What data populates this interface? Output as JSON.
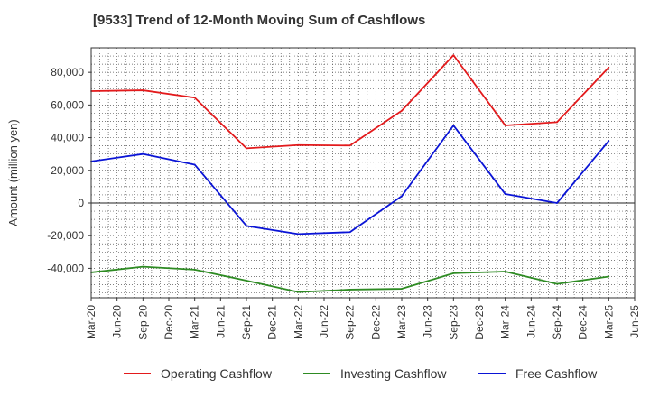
{
  "chart_data": {
    "type": "line",
    "title": "[9533]  Trend of 12-Month Moving Sum of Cashflows",
    "xlabel": "",
    "ylabel": "Amount (million yen)",
    "ylim": [
      -58000,
      95000
    ],
    "y_ticks": [
      -40000,
      -20000,
      0,
      20000,
      40000,
      60000,
      80000
    ],
    "y_tick_labels": [
      "-40,000",
      "-20,000",
      "0",
      "20,000",
      "40,000",
      "60,000",
      "80,000"
    ],
    "x_ticks": [
      "Mar-20",
      "Jun-20",
      "Sep-20",
      "Dec-20",
      "Mar-21",
      "Jun-21",
      "Sep-21",
      "Dec-21",
      "Mar-22",
      "Jun-22",
      "Sep-22",
      "Dec-22",
      "Mar-23",
      "Jun-23",
      "Sep-23",
      "Dec-23",
      "Mar-24",
      "Jun-24",
      "Sep-24",
      "Dec-24",
      "Mar-25",
      "Jun-25"
    ],
    "x": [
      "Mar-20",
      "Sep-20",
      "Mar-21",
      "Sep-21",
      "Mar-22",
      "Sep-22",
      "Mar-23",
      "Sep-23",
      "Mar-24",
      "Sep-24",
      "Mar-25"
    ],
    "grid": true,
    "legend_position": "bottom",
    "series": [
      {
        "name": "Operating Cashflow",
        "color": "#e31a1c",
        "values": [
          68500,
          69000,
          64500,
          33500,
          35500,
          35200,
          56500,
          90500,
          47500,
          49500,
          83000
        ]
      },
      {
        "name": "Investing Cashflow",
        "color": "#2e8b23",
        "values": [
          -42500,
          -39000,
          -40800,
          -47500,
          -54500,
          -53000,
          -52500,
          -43000,
          -42000,
          -49500,
          -45000
        ]
      },
      {
        "name": "Free Cashflow",
        "color": "#0a14d6",
        "values": [
          25500,
          30000,
          23500,
          -14000,
          -19000,
          -17800,
          4200,
          47500,
          5500,
          0,
          38000
        ]
      }
    ]
  }
}
